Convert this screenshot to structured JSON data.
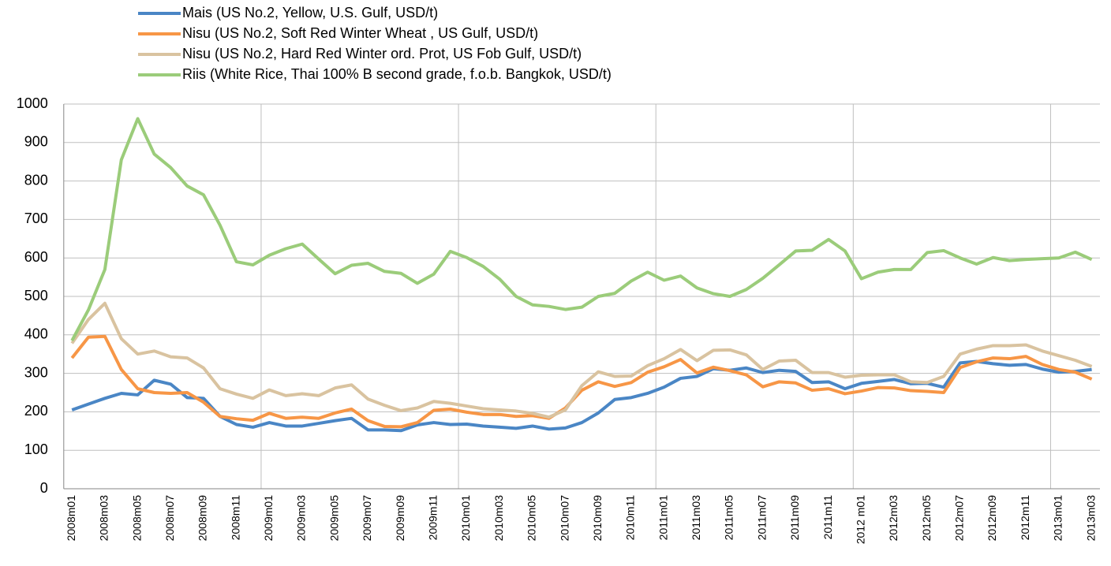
{
  "chart_data": {
    "type": "line",
    "categories": [
      "2008m01",
      null,
      "2008m03",
      null,
      "2008m05",
      null,
      "2008m07",
      null,
      "2008m09",
      null,
      "2008m11",
      null,
      "2009m01",
      null,
      "2009m03",
      null,
      "2009m05",
      null,
      "2009m07",
      null,
      "2009m09",
      null,
      "2009m11",
      null,
      "2010m01",
      null,
      "2010m03",
      null,
      "2010m05",
      null,
      "2010m07",
      null,
      "2010m09",
      null,
      "2010m11",
      null,
      "2011m01",
      null,
      "2011m03",
      null,
      "2011m05",
      null,
      "2011m07",
      null,
      "2011m09",
      null,
      "2011m11",
      null,
      "2012 m01",
      null,
      "2012m03",
      null,
      "2012m05",
      null,
      "2012m07",
      null,
      "2012m09",
      null,
      "2012m11",
      null,
      "2013m01",
      null,
      "2013m03"
    ],
    "series": [
      {
        "name": "Mais (US No.2, Yellow, U.S. Gulf, USD/t)",
        "color": "#4a86c5",
        "values": [
          205,
          220,
          235,
          248,
          244,
          282,
          272,
          237,
          235,
          188,
          167,
          160,
          172,
          163,
          163,
          170,
          177,
          183,
          153,
          153,
          151,
          166,
          172,
          167,
          168,
          163,
          160,
          157,
          163,
          155,
          158,
          172,
          197,
          232,
          237,
          248,
          264,
          287,
          292,
          312,
          308,
          314,
          302,
          308,
          305,
          276,
          278,
          260,
          274,
          279,
          284,
          273,
          274,
          264,
          327,
          331,
          325,
          321,
          323,
          311,
          303,
          305,
          310
        ]
      },
      {
        "name": "Nisu (US No.2, Soft Red Winter Wheat , US Gulf, USD/t)",
        "color": "#f79646",
        "values": [
          340,
          394,
          396,
          310,
          260,
          250,
          248,
          250,
          225,
          188,
          182,
          178,
          196,
          183,
          186,
          183,
          197,
          207,
          177,
          162,
          161,
          172,
          204,
          207,
          199,
          193,
          193,
          188,
          190,
          183,
          210,
          256,
          278,
          266,
          276,
          303,
          317,
          336,
          301,
          316,
          307,
          296,
          265,
          278,
          275,
          256,
          260,
          247,
          254,
          263,
          262,
          255,
          253,
          250,
          315,
          330,
          340,
          338,
          344,
          323,
          310,
          303,
          285
        ]
      },
      {
        "name": "Nisu (US No.2, Hard Red Winter ord. Prot, US Fob Gulf, USD/t)",
        "color": "#d9c3a0",
        "values": [
          378,
          440,
          482,
          390,
          350,
          358,
          343,
          340,
          314,
          260,
          246,
          235,
          257,
          242,
          247,
          242,
          262,
          270,
          233,
          217,
          203,
          210,
          227,
          222,
          215,
          208,
          205,
          202,
          196,
          186,
          205,
          268,
          304,
          292,
          293,
          320,
          338,
          362,
          333,
          360,
          361,
          348,
          310,
          332,
          334,
          302,
          302,
          290,
          295,
          296,
          296,
          278,
          276,
          292,
          350,
          363,
          372,
          372,
          374,
          358,
          346,
          334,
          318
        ]
      },
      {
        "name": "Riis (White Rice, Thai 100% B second grade, f.o.b. Bangkok, USD/t)",
        "color": "#9bcc7a",
        "values": [
          385,
          465,
          570,
          855,
          962,
          870,
          835,
          787,
          764,
          685,
          590,
          582,
          607,
          624,
          636,
          597,
          559,
          581,
          586,
          565,
          560,
          534,
          558,
          617,
          601,
          578,
          545,
          500,
          478,
          474,
          466,
          472,
          500,
          508,
          540,
          563,
          542,
          553,
          522,
          507,
          500,
          518,
          547,
          582,
          618,
          620,
          648,
          618,
          546,
          563,
          570,
          570,
          614,
          619,
          600,
          584,
          601,
          593,
          596,
          598,
          600,
          615,
          596
        ]
      }
    ],
    "ylim": [
      0,
      1000
    ],
    "yticks": [
      0,
      100,
      200,
      300,
      400,
      500,
      600,
      700,
      800,
      900,
      1000
    ],
    "grid": true,
    "legend": "top-left"
  }
}
